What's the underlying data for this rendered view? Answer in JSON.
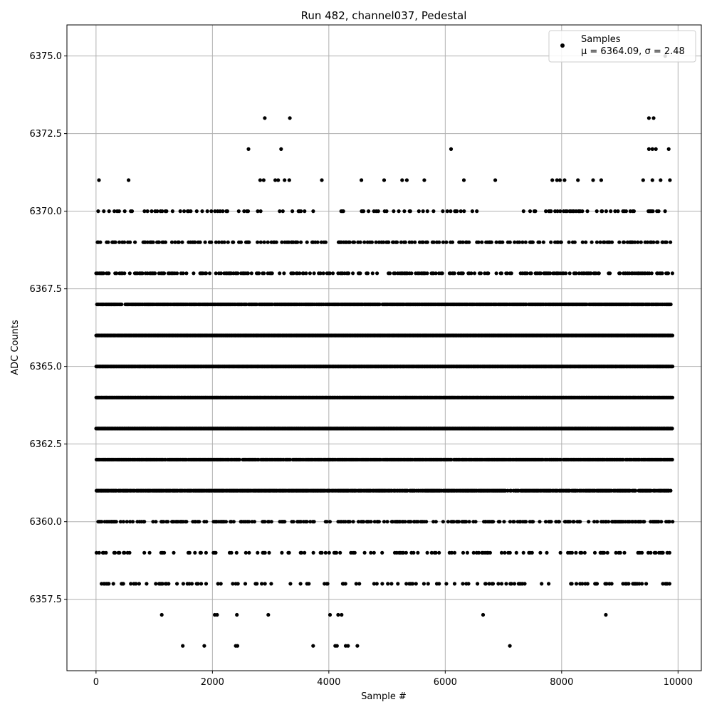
{
  "chart_data": {
    "type": "scatter",
    "title": "Run 482, channel037, Pedestal",
    "xlabel": "Sample #",
    "ylabel": "ADC Counts",
    "xlim": [
      -500,
      10400
    ],
    "ylim": [
      6355.2,
      6376.0
    ],
    "xticks": [
      0,
      2000,
      4000,
      6000,
      8000,
      10000
    ],
    "xtick_labels": [
      "0",
      "2000",
      "4000",
      "6000",
      "8000",
      "10000"
    ],
    "yticks": [
      6357.5,
      6360.0,
      6362.5,
      6365.0,
      6367.5,
      6370.0,
      6372.5,
      6375.0
    ],
    "ytick_labels": [
      "6357.5",
      "6360.0",
      "6362.5",
      "6365.0",
      "6367.5",
      "6370.0",
      "6372.5",
      "6375.0"
    ],
    "grid": true,
    "legend": {
      "placement": "top-right",
      "entries": [
        {
          "label": "Samples",
          "sublabel": "μ = 6364.09, σ = 2.48",
          "marker": "circle",
          "color": "#000000"
        }
      ]
    },
    "series": [
      {
        "name": "Samples",
        "color": "#000000",
        "marker": "circle",
        "x_range": [
          0,
          9900
        ],
        "n_points": 10000,
        "dense_levels": [
          6361,
          6362,
          6363,
          6364,
          6365,
          6366,
          6367
        ],
        "medium_levels": [
          6358,
          6359,
          6360,
          6368,
          6369,
          6370
        ],
        "points": [
          [
            50,
            6371
          ],
          [
            560,
            6371
          ],
          [
            2620,
            6372
          ],
          [
            2900,
            6373
          ],
          [
            3180,
            6372
          ],
          [
            3330,
            6373
          ],
          [
            3320,
            6371
          ],
          [
            3240,
            6371
          ],
          [
            3880,
            6371
          ],
          [
            4560,
            6371
          ],
          [
            4950,
            6371
          ],
          [
            5260,
            6371
          ],
          [
            5340,
            6371
          ],
          [
            5640,
            6371
          ],
          [
            6100,
            6372
          ],
          [
            6320,
            6371
          ],
          [
            6860,
            6371
          ],
          [
            7840,
            6371
          ],
          [
            7920,
            6371
          ],
          [
            7970,
            6371
          ],
          [
            8050,
            6371
          ],
          [
            8280,
            6371
          ],
          [
            8540,
            6371
          ],
          [
            8680,
            6371
          ],
          [
            9400,
            6371
          ],
          [
            9500,
            6373
          ],
          [
            9580,
            6373
          ],
          [
            9500,
            6372
          ],
          [
            9560,
            6372
          ],
          [
            9620,
            6372
          ],
          [
            9840,
            6372
          ],
          [
            9780,
            6375
          ],
          [
            9560,
            6371
          ],
          [
            9700,
            6371
          ],
          [
            9860,
            6371
          ],
          [
            2820,
            6371
          ],
          [
            2880,
            6371
          ],
          [
            3080,
            6371
          ],
          [
            3130,
            6371
          ],
          [
            1130,
            6357
          ],
          [
            2040,
            6357
          ],
          [
            2080,
            6357
          ],
          [
            2420,
            6357
          ],
          [
            2960,
            6357
          ],
          [
            4020,
            6357
          ],
          [
            4160,
            6357
          ],
          [
            4220,
            6357
          ],
          [
            6650,
            6357
          ],
          [
            8760,
            6357
          ],
          [
            1490,
            6356
          ],
          [
            1860,
            6356
          ],
          [
            2400,
            6356
          ],
          [
            2430,
            6356
          ],
          [
            3730,
            6356
          ],
          [
            4110,
            6356
          ],
          [
            4140,
            6356
          ],
          [
            4290,
            6356
          ],
          [
            4330,
            6356
          ],
          [
            4490,
            6356
          ],
          [
            7110,
            6356
          ]
        ]
      }
    ]
  }
}
